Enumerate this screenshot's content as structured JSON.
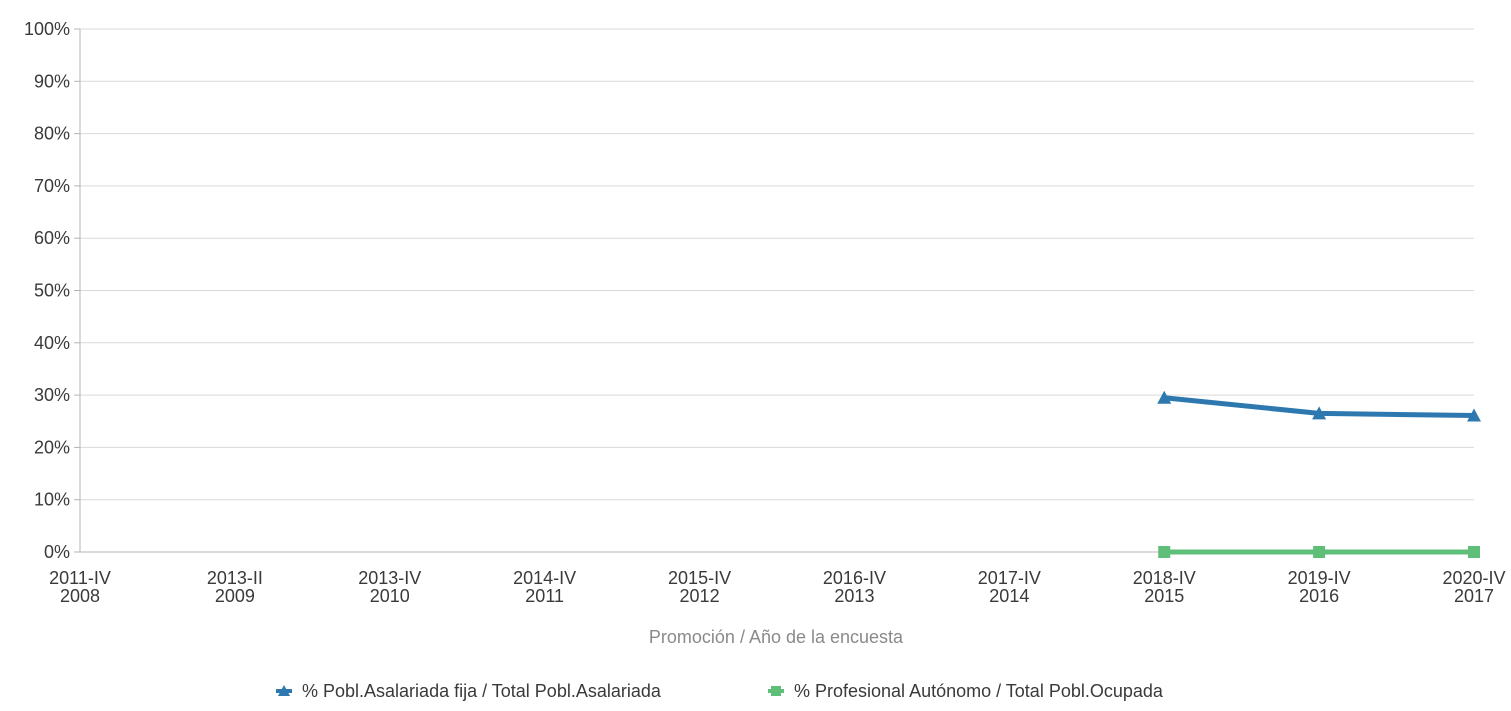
{
  "chart_data": {
    "type": "line",
    "title": "",
    "xlabel": "Promoción / Año de la encuesta",
    "ylabel": "",
    "categories": [
      [
        "2011-IV",
        "2008"
      ],
      [
        "2013-II",
        "2009"
      ],
      [
        "2013-IV",
        "2010"
      ],
      [
        "2014-IV",
        "2011"
      ],
      [
        "2015-IV",
        "2012"
      ],
      [
        "2016-IV",
        "2013"
      ],
      [
        "2017-IV",
        "2014"
      ],
      [
        "2018-IV",
        "2015"
      ],
      [
        "2019-IV",
        "2016"
      ],
      [
        "2020-IV",
        "2017"
      ]
    ],
    "ylim": [
      0,
      100
    ],
    "yticks": [
      "0%",
      "10%",
      "20%",
      "30%",
      "40%",
      "50%",
      "60%",
      "70%",
      "80%",
      "90%",
      "100%"
    ],
    "grid": true,
    "legend_position": "bottom",
    "series": [
      {
        "name": "% Pobl.Asalariada fija / Total Pobl.Asalariada",
        "color": "#2e78b0",
        "marker": "triangle",
        "values": [
          null,
          null,
          null,
          null,
          null,
          null,
          null,
          29.5,
          26.5,
          26.1
        ]
      },
      {
        "name": "% Profesional Autónomo / Total Pobl.Ocupada",
        "color": "#5fbf78",
        "marker": "square",
        "values": [
          null,
          null,
          null,
          null,
          null,
          null,
          null,
          0,
          0,
          0
        ]
      }
    ]
  }
}
